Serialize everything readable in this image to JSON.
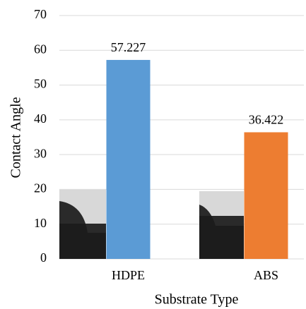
{
  "chart_data": {
    "type": "bar",
    "x_label": "Substrate Type",
    "y_label": "Contact Angle",
    "categories": [
      "HDPE",
      "ABS"
    ],
    "values": [
      57.227,
      36.422
    ],
    "colors": [
      "#5b9bd5",
      "#ed7d31"
    ],
    "ylim": [
      0,
      70
    ],
    "yticks": [
      0,
      10,
      20,
      30,
      40,
      50,
      60,
      70
    ],
    "grid": true
  }
}
